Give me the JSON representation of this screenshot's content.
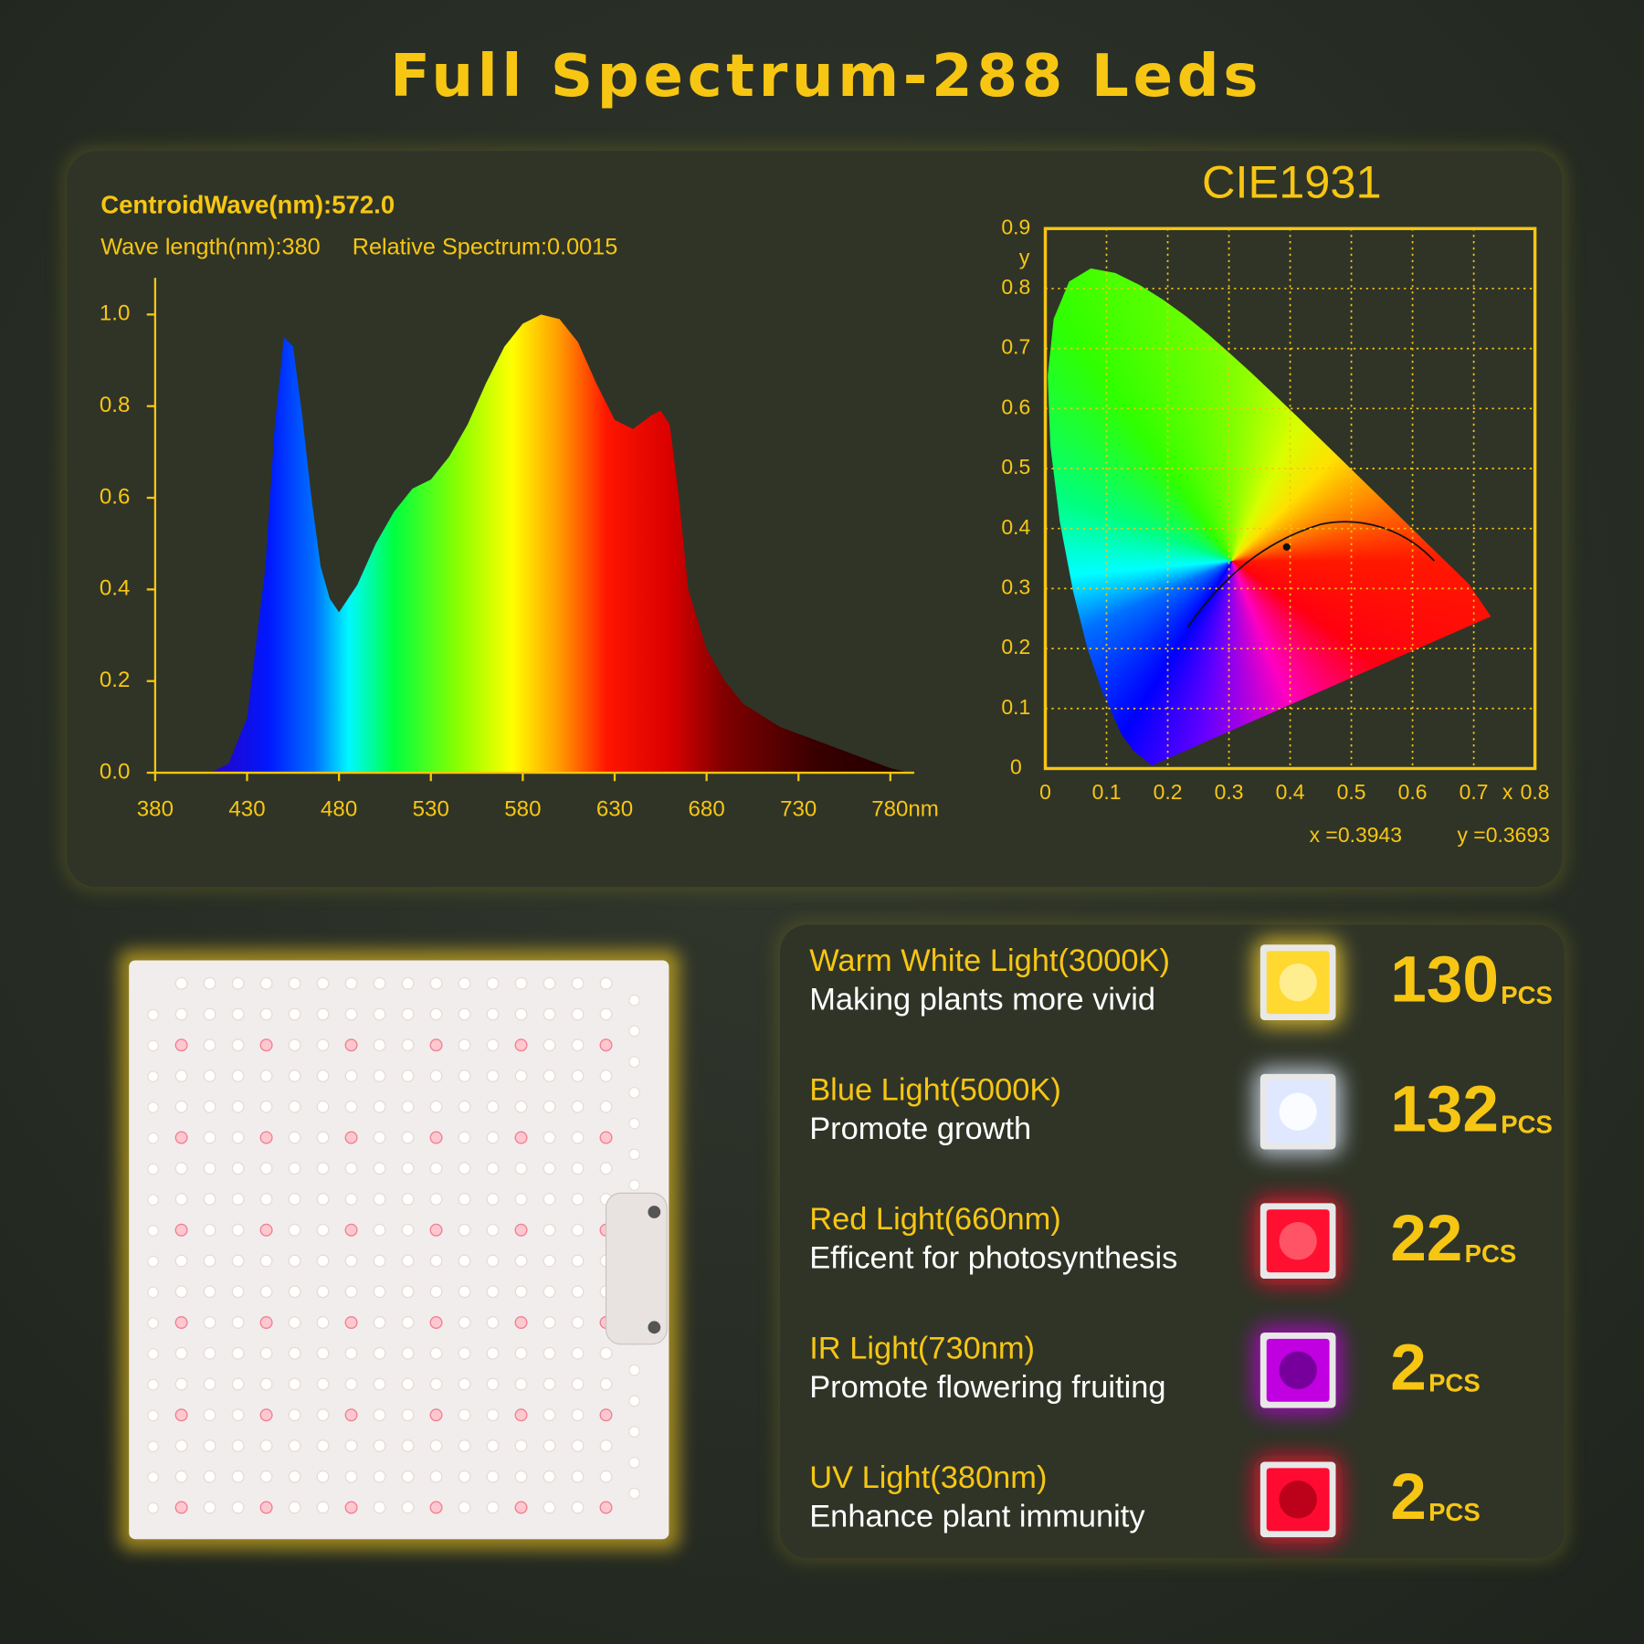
{
  "title": "Full Spectrum-288 Leds",
  "chart_data": [
    {
      "type": "area",
      "centroid_label": "CentroidWave(nm):572.0",
      "wavelength_label": "Wave length(nm):380",
      "relative_label": "Relative Spectrum:0.0015",
      "x": [
        410,
        420,
        430,
        440,
        445,
        450,
        455,
        460,
        465,
        470,
        475,
        480,
        490,
        500,
        510,
        520,
        530,
        540,
        550,
        560,
        570,
        580,
        590,
        600,
        610,
        620,
        630,
        640,
        650,
        655,
        660,
        665,
        670,
        680,
        690,
        700,
        720,
        740,
        760,
        780,
        790
      ],
      "values": [
        0,
        0.02,
        0.12,
        0.45,
        0.75,
        0.95,
        0.93,
        0.78,
        0.6,
        0.45,
        0.38,
        0.35,
        0.41,
        0.5,
        0.57,
        0.62,
        0.64,
        0.69,
        0.76,
        0.85,
        0.93,
        0.98,
        1.0,
        0.99,
        0.94,
        0.85,
        0.77,
        0.75,
        0.78,
        0.79,
        0.76,
        0.6,
        0.4,
        0.27,
        0.2,
        0.15,
        0.1,
        0.07,
        0.04,
        0.01,
        0
      ],
      "xlim": [
        380,
        793
      ],
      "ylim": [
        0,
        1.08
      ],
      "xticks": [
        380,
        430,
        480,
        530,
        580,
        630,
        680,
        730,
        {
          "value": 780,
          "label": "780nm"
        }
      ],
      "yticks": [
        {
          "value": 0,
          "label": "0.0"
        },
        0.2,
        0.4,
        0.6,
        0.8,
        {
          "value": 1,
          "label": "1.0"
        }
      ]
    },
    {
      "type": "cie",
      "title": "CIE1931",
      "x_label": "x",
      "y_label": "y",
      "xlim": [
        0,
        0.8
      ],
      "ylim": [
        0,
        0.9
      ],
      "xticks": [
        0,
        0.1,
        0.2,
        0.3,
        0.4,
        0.5,
        0.6,
        0.7,
        0.8
      ],
      "yticks": [
        0,
        0.1,
        0.2,
        0.3,
        0.4,
        0.5,
        0.6,
        0.7,
        0.8,
        0.9
      ],
      "grid": true,
      "x": [
        0.3943
      ],
      "y": [
        0.3693
      ],
      "point_labels": [
        "x =0.3943",
        "y =0.3693"
      ]
    }
  ],
  "led_types": [
    {
      "name": "Warm White Light(3000K)",
      "description": "Making plants more vivid",
      "count": 130,
      "unit": "PCS"
    },
    {
      "name": "Blue Light(5000K)",
      "description": "Promote growth",
      "count": 132,
      "unit": "PCS"
    },
    {
      "name": "Red Light(660nm)",
      "description": "Efficent for photosynthesis",
      "count": 22,
      "unit": "PCS"
    },
    {
      "name": "IR Light(730nm)",
      "description": "Promote flowering fruiting",
      "count": 2,
      "unit": "PCS"
    },
    {
      "name": "UV Light(380nm)",
      "description": "Enhance plant immunity",
      "count": 2,
      "unit": "PCS"
    }
  ]
}
